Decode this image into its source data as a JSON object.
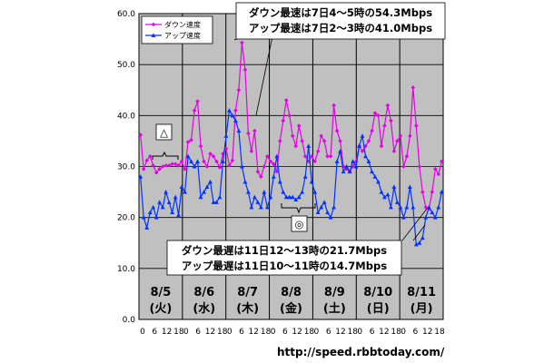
{
  "chart_data": {
    "type": "line",
    "ylim": [
      0,
      60
    ],
    "yticks": [
      "0.0",
      "10.0",
      "20.0",
      "30.0",
      "40.0",
      "50.0",
      "60.0"
    ],
    "hour_ticks": [
      "0",
      "6",
      "12",
      "18"
    ],
    "days": [
      {
        "date": "8/5",
        "weekday": "(火)",
        "highlight": false
      },
      {
        "date": "8/6",
        "weekday": "(水)",
        "highlight": false
      },
      {
        "date": "8/7",
        "weekday": "(木)",
        "highlight": false
      },
      {
        "date": "8/8",
        "weekday": "(金)",
        "highlight": true
      },
      {
        "date": "8/9",
        "weekday": "(土)",
        "highlight": false
      },
      {
        "date": "8/10",
        "weekday": "(日)",
        "highlight": false
      },
      {
        "date": "8/11",
        "weekday": "(月)",
        "highlight": false
      }
    ],
    "series": [
      {
        "name": "ダウン速度",
        "color": "#e600e6",
        "marker": "diamond",
        "values": [
          36.2,
          29.5,
          31.2,
          32.0,
          30.2,
          28.8,
          29.5,
          30.0,
          30.2,
          30.2,
          30.5,
          30.5,
          30.2,
          31.0,
          29.5,
          34.8,
          35.2,
          41.0,
          42.8,
          34.0,
          31.0,
          30.0,
          32.5,
          32.0,
          31.0,
          29.8,
          32.5,
          33.5,
          30.2,
          31.2,
          41.0,
          45.0,
          54.3,
          49.0,
          36.5,
          33.0,
          37.0,
          29.0,
          28.0,
          30.0,
          32.0,
          31.0,
          30.5,
          29.0,
          35.0,
          39.0,
          43.0,
          40.0,
          36.0,
          34.0,
          38.0,
          35.0,
          32.0,
          31.0,
          32.0,
          31.0,
          33.0,
          36.0,
          35.0,
          32.0,
          32.0,
          42.0,
          37.0,
          35.0,
          30.0,
          29.5,
          29.0,
          30.0,
          31.0,
          34.0,
          33.0,
          34.0,
          35.0,
          37.0,
          40.5,
          40.0,
          34.0,
          38.0,
          42.0,
          39.0,
          33.0,
          35.0,
          36.0,
          30.0,
          32.0,
          36.0,
          45.5,
          38.0,
          30.0,
          25.0,
          22.0,
          21.7,
          25.0,
          29.5,
          28.5,
          31.0
        ]
      },
      {
        "name": "アップ速度",
        "color": "#0033ff",
        "marker": "triangle",
        "values": [
          28.0,
          20.0,
          18.0,
          21.0,
          22.0,
          20.0,
          23.0,
          22.0,
          25.0,
          23.0,
          21.0,
          24.0,
          20.5,
          26.0,
          25.0,
          32.0,
          31.0,
          30.0,
          31.0,
          24.0,
          25.0,
          26.0,
          27.0,
          23.0,
          23.0,
          24.0,
          31.0,
          36.0,
          41.0,
          40.0,
          39.0,
          37.0,
          30.0,
          27.0,
          25.0,
          22.0,
          24.0,
          23.0,
          22.0,
          25.0,
          22.0,
          24.0,
          28.0,
          32.0,
          27.0,
          25.0,
          24.0,
          24.0,
          24.0,
          23.5,
          24.0,
          25.0,
          28.0,
          34.0,
          27.0,
          25.0,
          21.0,
          22.0,
          23.0,
          21.0,
          20.0,
          22.0,
          31.0,
          33.0,
          29.0,
          30.0,
          29.0,
          31.0,
          30.0,
          34.0,
          36.0,
          32.0,
          31.0,
          29.0,
          28.0,
          27.0,
          25.0,
          24.0,
          24.5,
          22.0,
          26.0,
          23.0,
          22.0,
          20.0,
          22.0,
          26.0,
          22.0,
          14.7,
          15.0,
          16.0,
          20.0,
          22.0,
          21.0,
          20.0,
          22.0,
          25.0
        ]
      }
    ],
    "annotations": [
      {
        "line1": "ダウン最速は7日4～5時の54.3Mbps",
        "line2": "アップ最速は7日2～3時の41.0Mbps"
      },
      {
        "line1": "ダウン最遅は11日12～13時の21.7Mbps",
        "line2": "アップ最遅は11日10～11時の14.7Mbps"
      }
    ],
    "markers": [
      "△",
      "◎"
    ],
    "credit": "http://speed.rbbtoday.com/"
  }
}
